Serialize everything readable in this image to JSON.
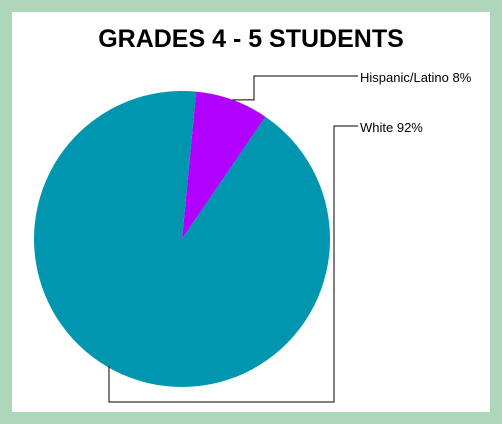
{
  "chart_data": {
    "type": "pie",
    "title": "GRADES 4 - 5 STUDENTS",
    "slices": [
      {
        "label": "Hispanic/Latino 8%",
        "category": "Hispanic/Latino",
        "value": 8,
        "color": "#b000ff"
      },
      {
        "label": "White 92%",
        "category": "White",
        "value": 92,
        "color": "#0096b0"
      }
    ],
    "legend": "none"
  },
  "colors": {
    "background": "#aed6bb",
    "plot_background": "#ffffff"
  }
}
